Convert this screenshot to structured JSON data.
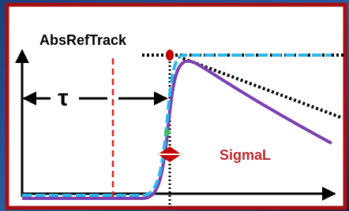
{
  "labels": {
    "track": "AbsRefTrack",
    "tau": "τ",
    "sigma": "SigmaL"
  }
}
